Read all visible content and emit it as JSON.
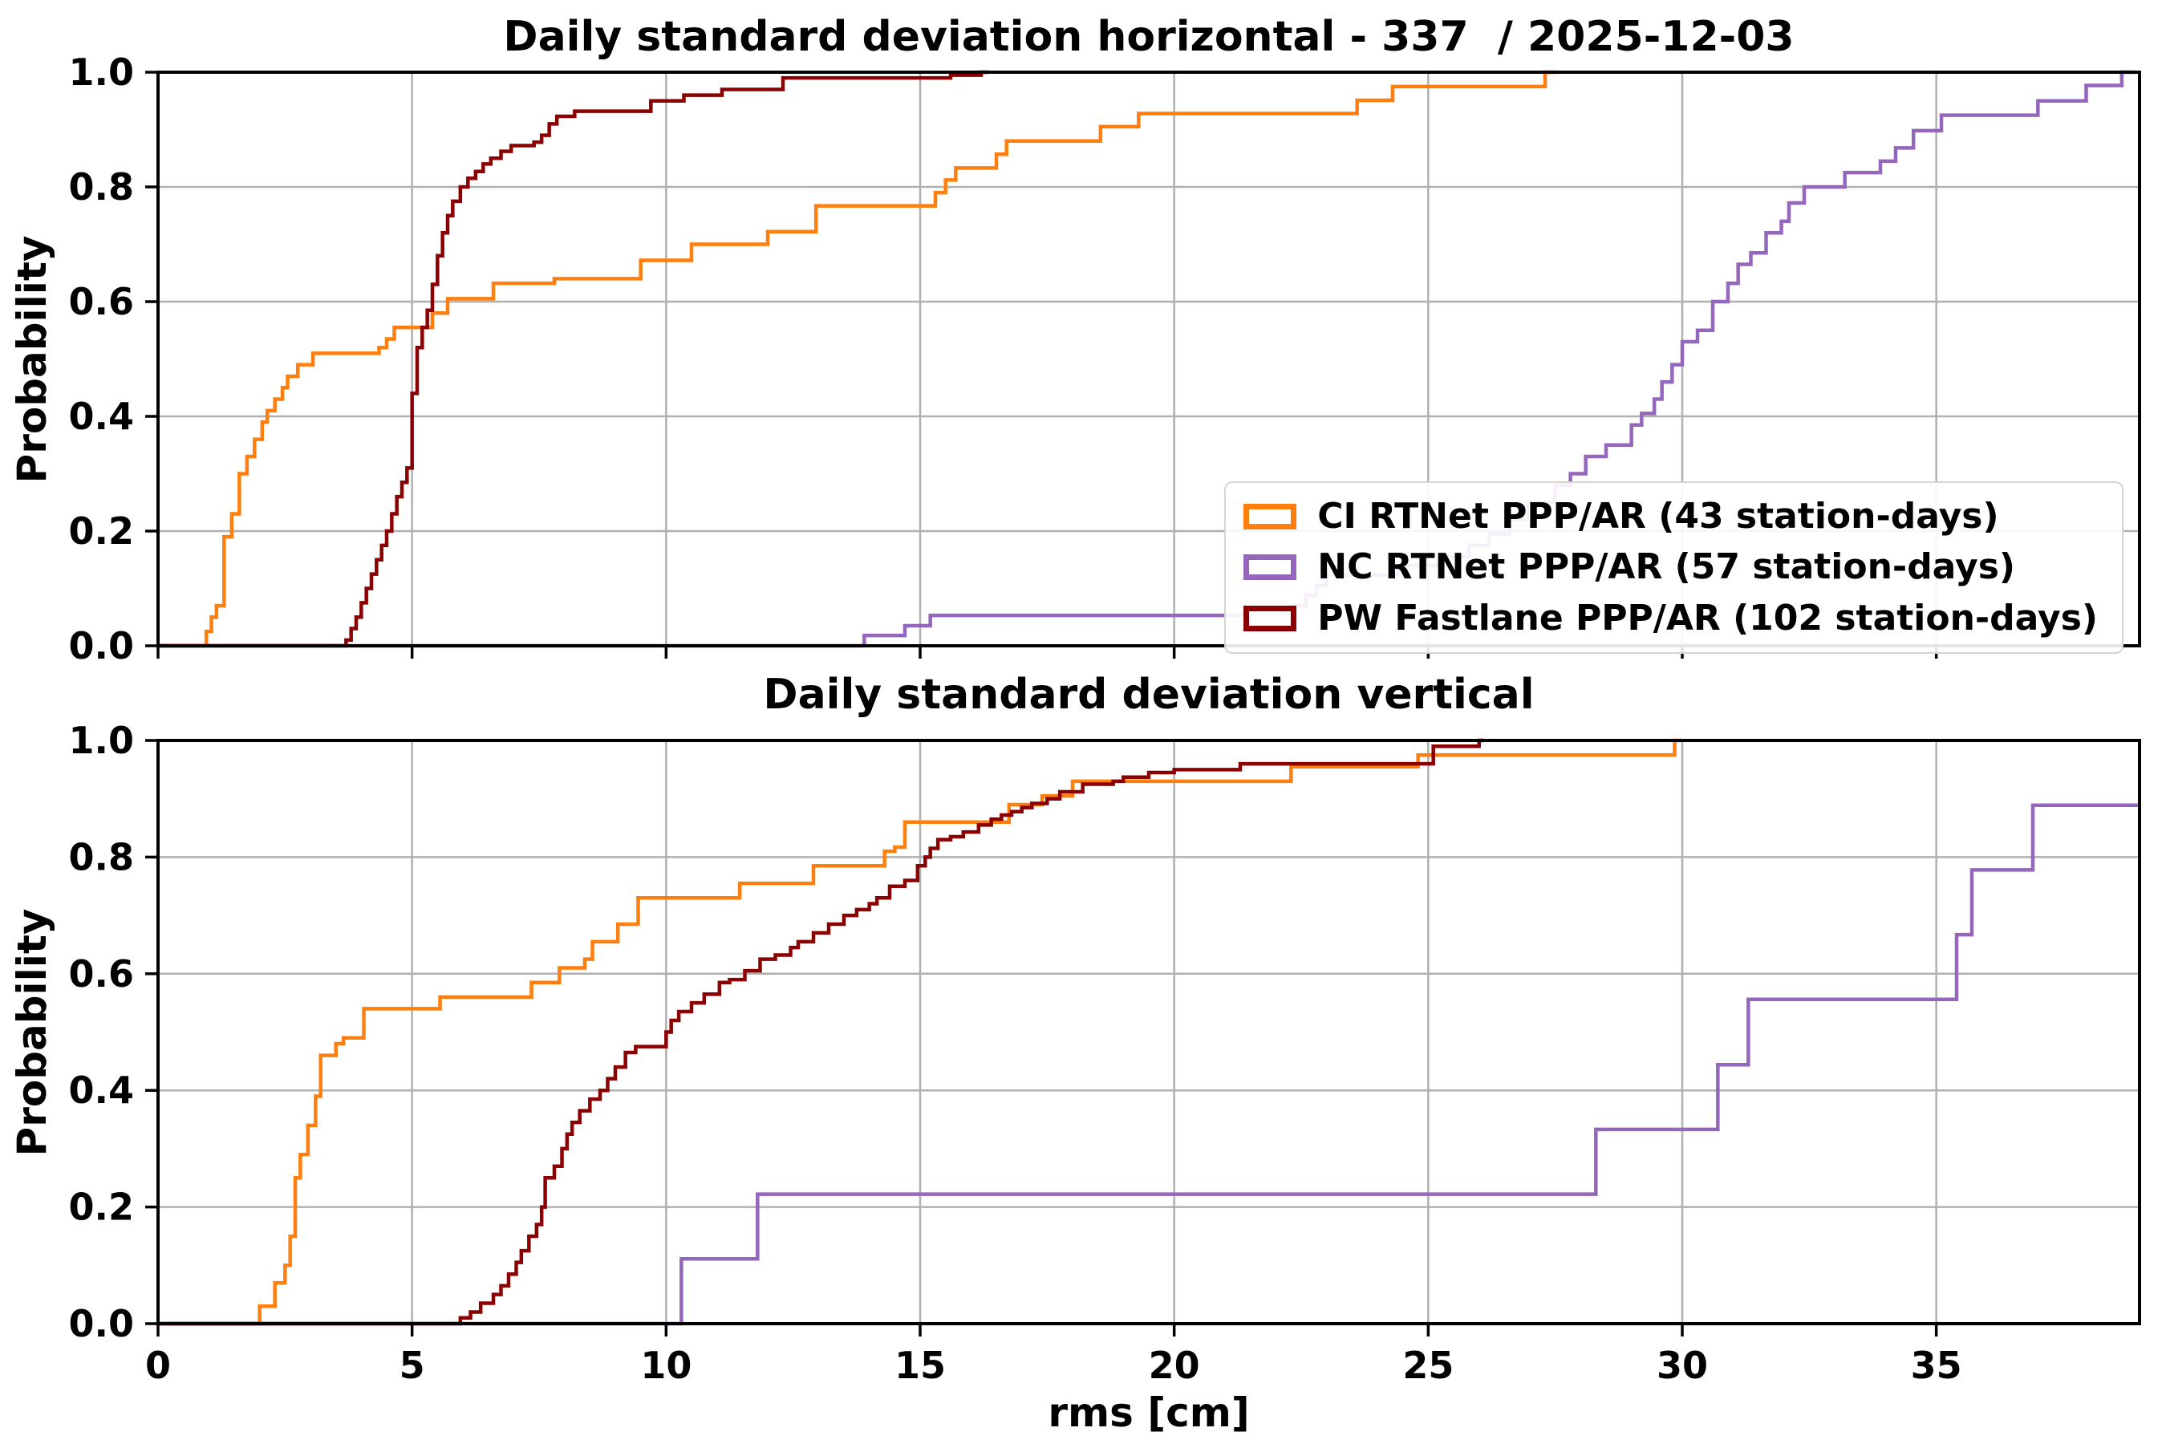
{
  "figure_bg": "#ffffff",
  "grid_color": "#b0b0b0",
  "axis_color": "#000000",
  "chart_data": [
    {
      "type": "step-ecdf",
      "title": "Daily standard deviation horizontal - 337  / 2025-12-03",
      "ylabel": "Probability",
      "xlabel": "",
      "xlim": [
        0,
        39
      ],
      "ylim": [
        0,
        1
      ],
      "grid": true,
      "xticks": [
        0,
        5,
        10,
        15,
        20,
        25,
        30,
        35
      ],
      "xtick_labels": [
        "0",
        "5",
        "10",
        "15",
        "20",
        "25",
        "30",
        "35"
      ],
      "show_xtick_labels": false,
      "yticks": [
        0,
        0.2,
        0.4,
        0.6,
        0.8,
        1.0
      ],
      "ytick_labels": [
        "0.0",
        "0.2",
        "0.4",
        "0.6",
        "0.8",
        "1.0"
      ],
      "legend_position": "lower right",
      "series": [
        {
          "name": "CI RTNet PPP/AR (43 station-days)",
          "color": "#ff7f0e",
          "end_x": 27.55,
          "points": [
            [
              0.95,
              0.025
            ],
            [
              1.05,
              0.05
            ],
            [
              1.15,
              0.07
            ],
            [
              1.3,
              0.19
            ],
            [
              1.45,
              0.23
            ],
            [
              1.6,
              0.3
            ],
            [
              1.75,
              0.33
            ],
            [
              1.9,
              0.36
            ],
            [
              2.05,
              0.39
            ],
            [
              2.15,
              0.41
            ],
            [
              2.3,
              0.43
            ],
            [
              2.45,
              0.45
            ],
            [
              2.55,
              0.47
            ],
            [
              2.75,
              0.49
            ],
            [
              3.05,
              0.51
            ],
            [
              4.35,
              0.52
            ],
            [
              4.5,
              0.535
            ],
            [
              4.65,
              0.555
            ],
            [
              5.4,
              0.58
            ],
            [
              5.7,
              0.605
            ],
            [
              6.6,
              0.632
            ],
            [
              7.8,
              0.64
            ],
            [
              9.5,
              0.672
            ],
            [
              10.5,
              0.7
            ],
            [
              12.0,
              0.722
            ],
            [
              12.95,
              0.767
            ],
            [
              15.3,
              0.79
            ],
            [
              15.5,
              0.812
            ],
            [
              15.7,
              0.833
            ],
            [
              16.5,
              0.857
            ],
            [
              16.7,
              0.88
            ],
            [
              18.55,
              0.905
            ],
            [
              19.3,
              0.928
            ],
            [
              23.6,
              0.951
            ],
            [
              24.3,
              0.975
            ],
            [
              27.3,
              1.0
            ]
          ]
        },
        {
          "name": "NC RTNet PPP/AR (57 station-days)",
          "color": "#9467bd",
          "end_x": 38.9,
          "points": [
            [
              13.9,
              0.018
            ],
            [
              14.7,
              0.035
            ],
            [
              15.2,
              0.053
            ],
            [
              22.35,
              0.07
            ],
            [
              22.6,
              0.088
            ],
            [
              22.8,
              0.105
            ],
            [
              23.0,
              0.123
            ],
            [
              24.4,
              0.14
            ],
            [
              25.3,
              0.155
            ],
            [
              25.8,
              0.175
            ],
            [
              26.2,
              0.195
            ],
            [
              26.6,
              0.22
            ],
            [
              26.95,
              0.25
            ],
            [
              27.5,
              0.28
            ],
            [
              27.8,
              0.3
            ],
            [
              28.1,
              0.33
            ],
            [
              28.5,
              0.35
            ],
            [
              29.0,
              0.385
            ],
            [
              29.2,
              0.405
            ],
            [
              29.45,
              0.43
            ],
            [
              29.6,
              0.46
            ],
            [
              29.8,
              0.49
            ],
            [
              30.0,
              0.53
            ],
            [
              30.3,
              0.55
            ],
            [
              30.6,
              0.6
            ],
            [
              30.9,
              0.632
            ],
            [
              31.1,
              0.665
            ],
            [
              31.35,
              0.685
            ],
            [
              31.65,
              0.72
            ],
            [
              31.95,
              0.74
            ],
            [
              32.1,
              0.772
            ],
            [
              32.4,
              0.8
            ],
            [
              33.2,
              0.825
            ],
            [
              33.9,
              0.845
            ],
            [
              34.2,
              0.868
            ],
            [
              34.55,
              0.898
            ],
            [
              35.1,
              0.925
            ],
            [
              37.0,
              0.95
            ],
            [
              37.95,
              0.977
            ],
            [
              38.65,
              1.0
            ]
          ]
        },
        {
          "name": "PW Fastlane PPP/AR (102 station-days)",
          "color": "#8b0000",
          "end_x": 16.35,
          "points": [
            [
              3.7,
              0.01
            ],
            [
              3.8,
              0.03
            ],
            [
              3.9,
              0.05
            ],
            [
              4.0,
              0.075
            ],
            [
              4.1,
              0.1
            ],
            [
              4.2,
              0.125
            ],
            [
              4.3,
              0.15
            ],
            [
              4.4,
              0.175
            ],
            [
              4.5,
              0.2
            ],
            [
              4.6,
              0.23
            ],
            [
              4.7,
              0.26
            ],
            [
              4.8,
              0.285
            ],
            [
              4.9,
              0.31
            ],
            [
              5.0,
              0.44
            ],
            [
              5.1,
              0.52
            ],
            [
              5.2,
              0.555
            ],
            [
              5.3,
              0.585
            ],
            [
              5.4,
              0.63
            ],
            [
              5.5,
              0.68
            ],
            [
              5.6,
              0.72
            ],
            [
              5.7,
              0.75
            ],
            [
              5.8,
              0.775
            ],
            [
              5.95,
              0.8
            ],
            [
              6.1,
              0.815
            ],
            [
              6.25,
              0.827
            ],
            [
              6.4,
              0.84
            ],
            [
              6.55,
              0.85
            ],
            [
              6.75,
              0.862
            ],
            [
              6.95,
              0.872
            ],
            [
              7.4,
              0.878
            ],
            [
              7.55,
              0.89
            ],
            [
              7.7,
              0.91
            ],
            [
              7.85,
              0.923
            ],
            [
              8.2,
              0.932
            ],
            [
              9.7,
              0.95
            ],
            [
              10.35,
              0.96
            ],
            [
              11.1,
              0.97
            ],
            [
              12.3,
              0.99
            ],
            [
              15.6,
              0.995
            ],
            [
              16.2,
              1.0
            ]
          ]
        }
      ]
    },
    {
      "type": "step-ecdf",
      "title": "Daily standard deviation vertical",
      "ylabel": "Probability",
      "xlabel": "rms [cm]",
      "xlim": [
        0,
        39
      ],
      "ylim": [
        0,
        1
      ],
      "grid": true,
      "xticks": [
        0,
        5,
        10,
        15,
        20,
        25,
        30,
        35
      ],
      "xtick_labels": [
        "0",
        "5",
        "10",
        "15",
        "20",
        "25",
        "30",
        "35"
      ],
      "show_xtick_labels": true,
      "yticks": [
        0,
        0.2,
        0.4,
        0.6,
        0.8,
        1.0
      ],
      "ytick_labels": [
        "0.0",
        "0.2",
        "0.4",
        "0.6",
        "0.8",
        "1.0"
      ],
      "legend_position": "none",
      "series": [
        {
          "name": "CI RTNet PPP/AR (43 station-days)",
          "color": "#ff7f0e",
          "end_x": 30.0,
          "points": [
            [
              2.0,
              0.03
            ],
            [
              2.3,
              0.07
            ],
            [
              2.5,
              0.1
            ],
            [
              2.6,
              0.15
            ],
            [
              2.7,
              0.25
            ],
            [
              2.8,
              0.29
            ],
            [
              2.95,
              0.34
            ],
            [
              3.1,
              0.39
            ],
            [
              3.2,
              0.46
            ],
            [
              3.5,
              0.48
            ],
            [
              3.65,
              0.49
            ],
            [
              4.05,
              0.54
            ],
            [
              5.55,
              0.56
            ],
            [
              7.35,
              0.585
            ],
            [
              7.9,
              0.61
            ],
            [
              8.4,
              0.625
            ],
            [
              8.55,
              0.655
            ],
            [
              9.05,
              0.685
            ],
            [
              9.45,
              0.73
            ],
            [
              11.45,
              0.755
            ],
            [
              12.9,
              0.785
            ],
            [
              14.3,
              0.81
            ],
            [
              14.5,
              0.817
            ],
            [
              14.7,
              0.86
            ],
            [
              16.75,
              0.89
            ],
            [
              17.4,
              0.905
            ],
            [
              18.0,
              0.93
            ],
            [
              22.3,
              0.955
            ],
            [
              24.8,
              0.975
            ],
            [
              29.85,
              1.0
            ]
          ]
        },
        {
          "name": "NC RTNet PPP/AR (57 station-days)",
          "color": "#9467bd",
          "end_x": 39.0,
          "points": [
            [
              10.3,
              0.111
            ],
            [
              11.8,
              0.222
            ],
            [
              28.3,
              0.333
            ],
            [
              30.7,
              0.444
            ],
            [
              31.3,
              0.556
            ],
            [
              35.4,
              0.667
            ],
            [
              35.7,
              0.778
            ],
            [
              36.9,
              0.889
            ]
          ]
        },
        {
          "name": "PW Fastlane PPP/AR (102 station-days)",
          "color": "#8b0000",
          "end_x": 26.1,
          "points": [
            [
              5.95,
              0.01
            ],
            [
              6.15,
              0.02
            ],
            [
              6.35,
              0.035
            ],
            [
              6.6,
              0.05
            ],
            [
              6.75,
              0.065
            ],
            [
              6.9,
              0.085
            ],
            [
              7.05,
              0.105
            ],
            [
              7.15,
              0.125
            ],
            [
              7.3,
              0.15
            ],
            [
              7.45,
              0.17
            ],
            [
              7.55,
              0.2
            ],
            [
              7.62,
              0.25
            ],
            [
              7.8,
              0.27
            ],
            [
              7.95,
              0.3
            ],
            [
              8.05,
              0.325
            ],
            [
              8.15,
              0.345
            ],
            [
              8.3,
              0.365
            ],
            [
              8.5,
              0.385
            ],
            [
              8.7,
              0.4
            ],
            [
              8.85,
              0.42
            ],
            [
              9.0,
              0.44
            ],
            [
              9.2,
              0.465
            ],
            [
              9.4,
              0.475
            ],
            [
              10.0,
              0.5
            ],
            [
              10.1,
              0.52
            ],
            [
              10.25,
              0.535
            ],
            [
              10.5,
              0.55
            ],
            [
              10.75,
              0.565
            ],
            [
              11.05,
              0.585
            ],
            [
              11.25,
              0.59
            ],
            [
              11.55,
              0.605
            ],
            [
              11.85,
              0.625
            ],
            [
              12.15,
              0.632
            ],
            [
              12.45,
              0.645
            ],
            [
              12.6,
              0.655
            ],
            [
              12.9,
              0.67
            ],
            [
              13.2,
              0.685
            ],
            [
              13.5,
              0.7
            ],
            [
              13.75,
              0.71
            ],
            [
              14.0,
              0.72
            ],
            [
              14.15,
              0.73
            ],
            [
              14.4,
              0.75
            ],
            [
              14.7,
              0.76
            ],
            [
              14.95,
              0.785
            ],
            [
              15.1,
              0.8
            ],
            [
              15.2,
              0.815
            ],
            [
              15.35,
              0.83
            ],
            [
              15.6,
              0.835
            ],
            [
              15.85,
              0.843
            ],
            [
              16.15,
              0.855
            ],
            [
              16.4,
              0.865
            ],
            [
              16.6,
              0.872
            ],
            [
              16.8,
              0.878
            ],
            [
              17.0,
              0.885
            ],
            [
              17.2,
              0.892
            ],
            [
              17.5,
              0.9
            ],
            [
              17.75,
              0.912
            ],
            [
              18.2,
              0.925
            ],
            [
              18.8,
              0.93
            ],
            [
              19.0,
              0.937
            ],
            [
              19.5,
              0.945
            ],
            [
              20.0,
              0.95
            ],
            [
              21.3,
              0.96
            ],
            [
              25.1,
              0.99
            ],
            [
              26.0,
              1.0
            ]
          ]
        }
      ]
    }
  ]
}
